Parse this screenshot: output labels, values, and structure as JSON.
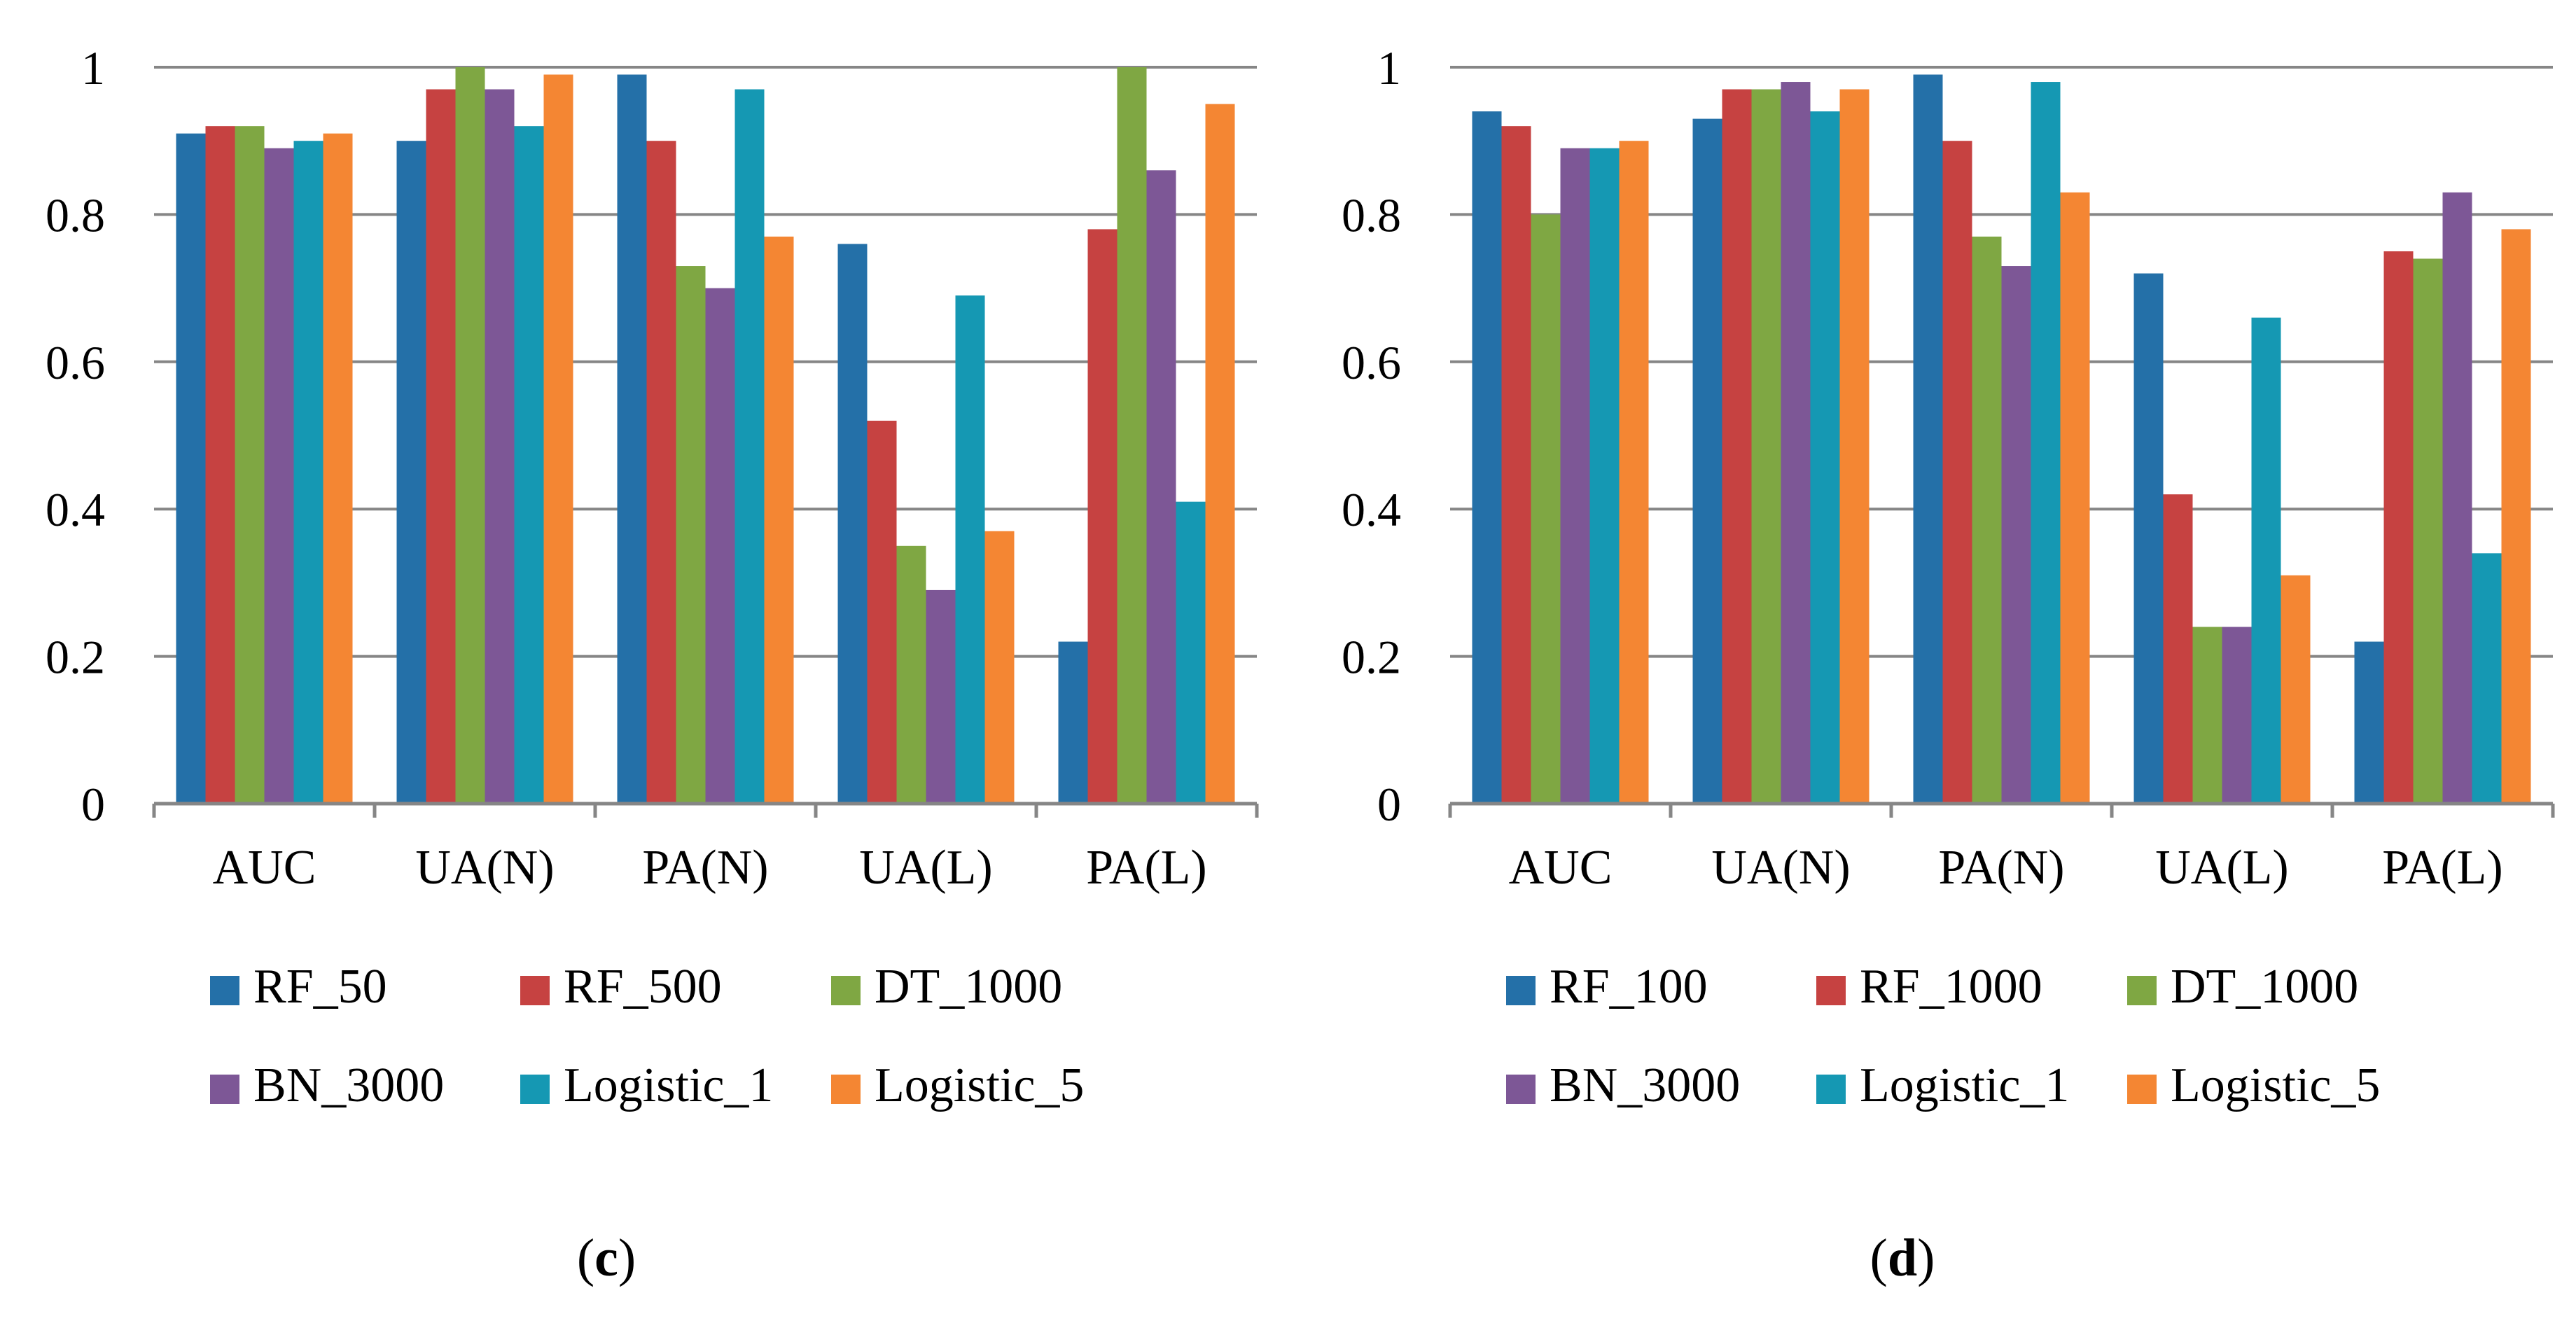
{
  "colors": {
    "series": [
      "#2470A8",
      "#C64241",
      "#7FA743",
      "#7D5796",
      "#1598B3",
      "#F48633"
    ],
    "grid": "#868686",
    "axis": "#868686",
    "text": "#000000"
  },
  "chart_data": [
    {
      "type": "bar",
      "panel_label": "(c)",
      "panel_letter": "c",
      "categories": [
        "AUC",
        "UA(N)",
        "PA(N)",
        "UA(L)",
        "PA(L)"
      ],
      "ylim": [
        0,
        1
      ],
      "yticks": [
        "0",
        "0.2",
        "0.4",
        "0.6",
        "0.8",
        "1"
      ],
      "ytick_values": [
        0,
        0.2,
        0.4,
        0.6,
        0.8,
        1
      ],
      "grid": true,
      "legend_position": "bottom",
      "series": [
        {
          "name": "RF_50",
          "values": [
            0.91,
            0.9,
            0.99,
            0.76,
            0.22
          ]
        },
        {
          "name": "RF_500",
          "values": [
            0.92,
            0.97,
            0.9,
            0.52,
            0.78
          ]
        },
        {
          "name": "DT_1000",
          "values": [
            0.92,
            1.0,
            0.73,
            0.35,
            1.0
          ]
        },
        {
          "name": "BN_3000",
          "values": [
            0.89,
            0.97,
            0.7,
            0.29,
            0.86
          ]
        },
        {
          "name": "Logistic_1",
          "values": [
            0.9,
            0.92,
            0.97,
            0.69,
            0.41
          ]
        },
        {
          "name": "Logistic_5",
          "values": [
            0.91,
            0.99,
            0.77,
            0.37,
            0.95
          ]
        }
      ]
    },
    {
      "type": "bar",
      "panel_label": "(d)",
      "panel_letter": "d",
      "categories": [
        "AUC",
        "UA(N)",
        "PA(N)",
        "UA(L)",
        "PA(L)"
      ],
      "ylim": [
        0,
        1
      ],
      "yticks": [
        "0",
        "0.2",
        "0.4",
        "0.6",
        "0.8",
        "1"
      ],
      "ytick_values": [
        0,
        0.2,
        0.4,
        0.6,
        0.8,
        1
      ],
      "grid": true,
      "legend_position": "bottom",
      "series": [
        {
          "name": "RF_100",
          "values": [
            0.94,
            0.93,
            0.99,
            0.72,
            0.22
          ]
        },
        {
          "name": "RF_1000",
          "values": [
            0.92,
            0.97,
            0.9,
            0.42,
            0.75
          ]
        },
        {
          "name": "DT_1000",
          "values": [
            0.8,
            0.97,
            0.77,
            0.24,
            0.74
          ]
        },
        {
          "name": "BN_3000",
          "values": [
            0.89,
            0.98,
            0.73,
            0.24,
            0.83
          ]
        },
        {
          "name": "Logistic_1",
          "values": [
            0.89,
            0.94,
            0.98,
            0.66,
            0.34
          ]
        },
        {
          "name": "Logistic_5",
          "values": [
            0.9,
            0.97,
            0.83,
            0.31,
            0.78
          ]
        }
      ]
    }
  ]
}
